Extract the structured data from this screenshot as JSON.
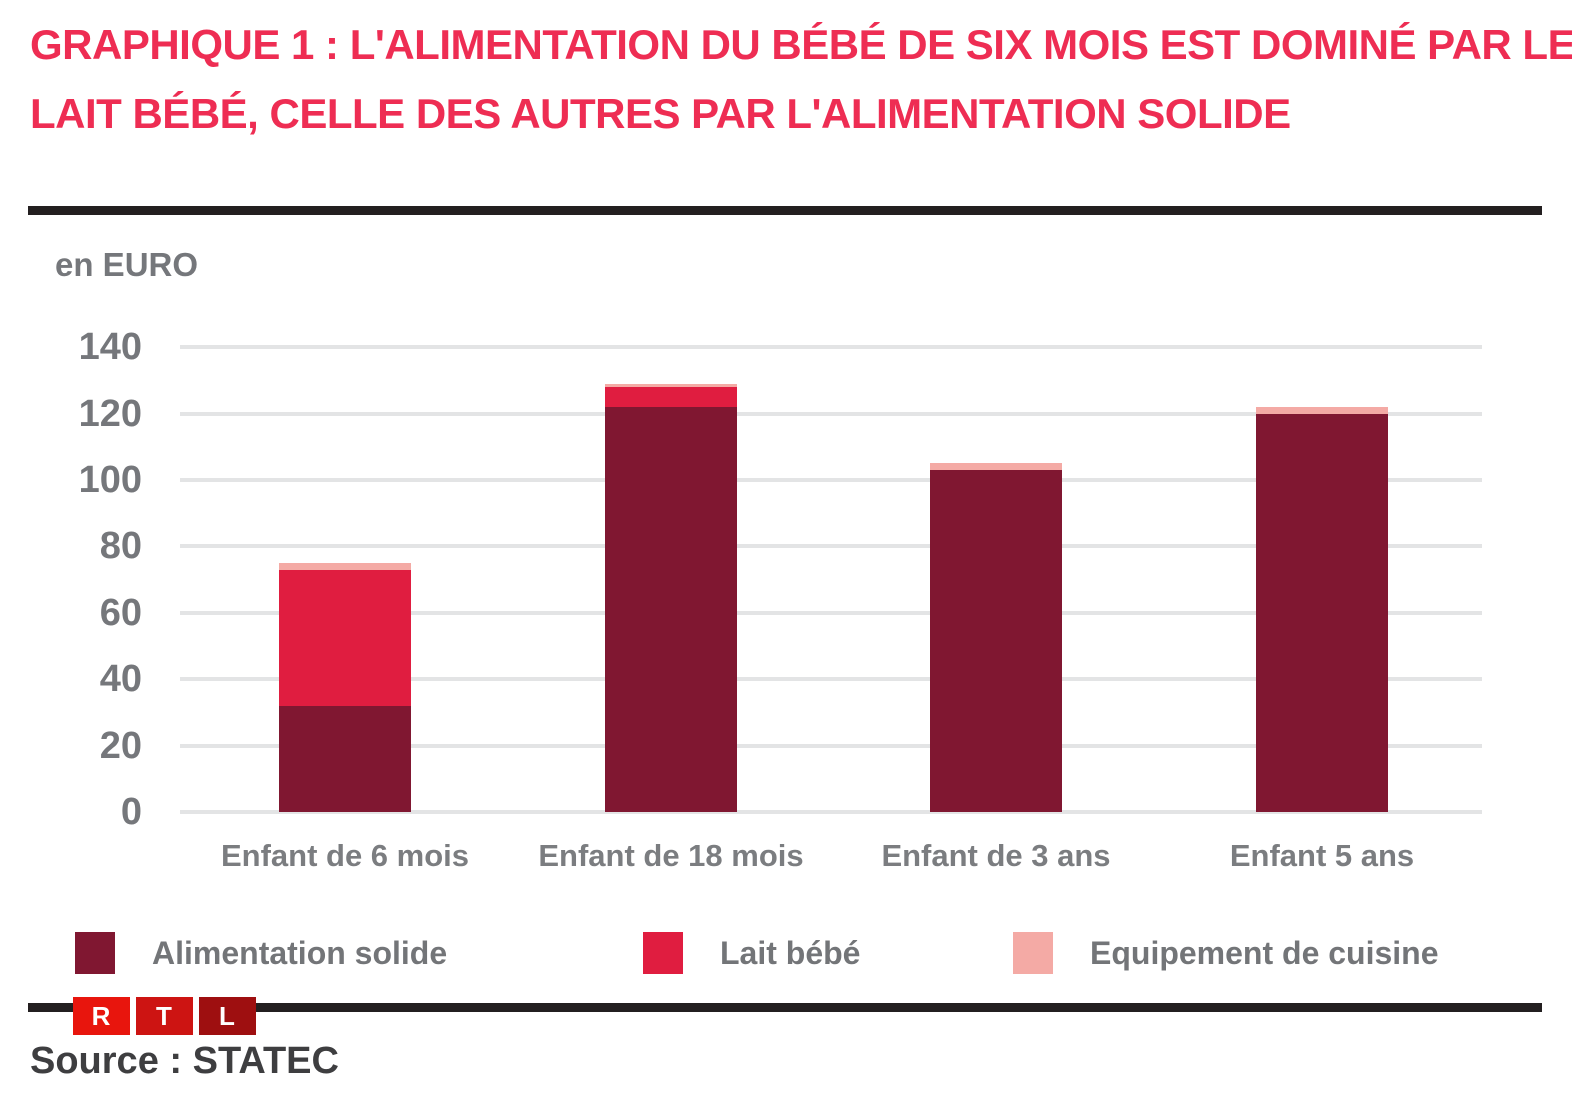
{
  "title": {
    "lines": [
      "GRAPHIQUE 1 : L'ALIMENTATION DU BÉBÉ DE SIX MOIS EST DOMINÉ PAR LE",
      "LAIT BÉBÉ, CELLE DES AUTRES PAR L'ALIMENTATION SOLIDE"
    ]
  },
  "axis_unit_label": "en EURO",
  "source_label": "Source : STATEC",
  "logo": {
    "letters": [
      "R",
      "T",
      "L"
    ],
    "colors": [
      "#e8150d",
      "#cd1412",
      "#9e0f10"
    ]
  },
  "colors": {
    "title_accent": "#ee2d53",
    "divider_black": "#231f20",
    "gridline": "#e3e4e5",
    "tick_text": "#75777b",
    "xlabel_text": "#7b7d80",
    "legend_text": "#737578",
    "source_text": "#3e3e40"
  },
  "chart_data": {
    "type": "bar",
    "stacked": true,
    "title": "GRAPHIQUE 1 : L'ALIMENTATION DU BÉBÉ DE SIX MOIS EST DOMINÉ PAR LE LAIT BÉBÉ, CELLE DES AUTRES PAR L'ALIMENTATION SOLIDE",
    "ylabel": "en EURO",
    "xlabel": "",
    "ylim": [
      0,
      140
    ],
    "ytick_step": 20,
    "grid": true,
    "legend_position": "bottom",
    "categories": [
      "Enfant de 6 mois",
      "Enfant de 18 mois",
      "Enfant de 3 ans",
      "Enfant 5 ans"
    ],
    "series": [
      {
        "name": "Alimentation solide",
        "color": "#801731",
        "values": [
          32,
          122,
          103,
          120
        ]
      },
      {
        "name": "Lait bébé",
        "color": "#e01d40",
        "values": [
          41,
          6,
          0,
          0
        ]
      },
      {
        "name": "Equipement de cuisine",
        "color": "#f4aaa5",
        "values": [
          2,
          1,
          2,
          2
        ]
      }
    ]
  }
}
